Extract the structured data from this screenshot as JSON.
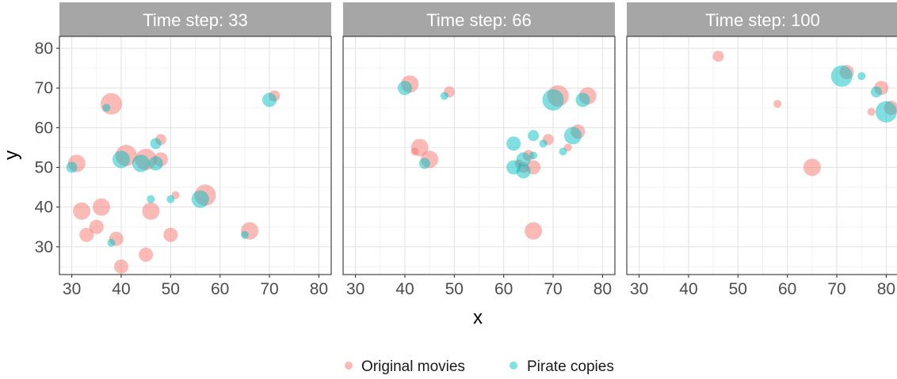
{
  "chart_data": {
    "type": "scatter",
    "xlabel": "x",
    "ylabel": "y",
    "xlim": [
      27.5,
      82.5
    ],
    "ylim": [
      23,
      83
    ],
    "x_ticks": [
      30,
      40,
      50,
      60,
      70,
      80
    ],
    "y_ticks": [
      30,
      40,
      50,
      60,
      70,
      80
    ],
    "grid": true,
    "legend_position": "bottom",
    "colors": {
      "Original movies": "#F8766D",
      "Pirate copies": "#00BFC4"
    },
    "legend": [
      "Original movies",
      "Pirate copies"
    ],
    "panels": [
      {
        "title": "Time step: 33",
        "series": [
          {
            "name": "Original movies",
            "points": [
              {
                "x": 31,
                "y": 51,
                "size": 4
              },
              {
                "x": 32,
                "y": 39,
                "size": 4
              },
              {
                "x": 33,
                "y": 33,
                "size": 3
              },
              {
                "x": 35,
                "y": 35,
                "size": 3
              },
              {
                "x": 36,
                "y": 40,
                "size": 4
              },
              {
                "x": 38,
                "y": 66,
                "size": 5
              },
              {
                "x": 39,
                "y": 32,
                "size": 3
              },
              {
                "x": 40,
                "y": 25,
                "size": 3
              },
              {
                "x": 41,
                "y": 53,
                "size": 5
              },
              {
                "x": 45,
                "y": 28,
                "size": 3
              },
              {
                "x": 45,
                "y": 52,
                "size": 5
              },
              {
                "x": 46,
                "y": 39,
                "size": 4
              },
              {
                "x": 48,
                "y": 52,
                "size": 3
              },
              {
                "x": 48,
                "y": 57,
                "size": 2
              },
              {
                "x": 50,
                "y": 33,
                "size": 3
              },
              {
                "x": 51,
                "y": 43,
                "size": 1
              },
              {
                "x": 57,
                "y": 43,
                "size": 5
              },
              {
                "x": 66,
                "y": 34,
                "size": 4
              },
              {
                "x": 71,
                "y": 68,
                "size": 2
              }
            ]
          },
          {
            "name": "Pirate copies",
            "points": [
              {
                "x": 30,
                "y": 50,
                "size": 2
              },
              {
                "x": 37,
                "y": 65,
                "size": 1
              },
              {
                "x": 38,
                "y": 31,
                "size": 1
              },
              {
                "x": 40,
                "y": 52,
                "size": 4
              },
              {
                "x": 44,
                "y": 51,
                "size": 4
              },
              {
                "x": 46,
                "y": 42,
                "size": 1
              },
              {
                "x": 47,
                "y": 51,
                "size": 3
              },
              {
                "x": 47,
                "y": 56,
                "size": 2
              },
              {
                "x": 50,
                "y": 42,
                "size": 1
              },
              {
                "x": 56,
                "y": 42,
                "size": 4
              },
              {
                "x": 65,
                "y": 33,
                "size": 1
              },
              {
                "x": 70,
                "y": 67,
                "size": 3
              }
            ]
          }
        ]
      },
      {
        "title": "Time step: 66",
        "series": [
          {
            "name": "Original movies",
            "points": [
              {
                "x": 41,
                "y": 71,
                "size": 4
              },
              {
                "x": 42,
                "y": 54,
                "size": 1
              },
              {
                "x": 43,
                "y": 55,
                "size": 4
              },
              {
                "x": 45,
                "y": 52,
                "size": 4
              },
              {
                "x": 49,
                "y": 69,
                "size": 2
              },
              {
                "x": 63,
                "y": 51,
                "size": 1
              },
              {
                "x": 64,
                "y": 50,
                "size": 2
              },
              {
                "x": 65,
                "y": 53,
                "size": 2
              },
              {
                "x": 66,
                "y": 50,
                "size": 3
              },
              {
                "x": 66,
                "y": 34,
                "size": 4
              },
              {
                "x": 69,
                "y": 57,
                "size": 2
              },
              {
                "x": 71,
                "y": 68,
                "size": 5
              },
              {
                "x": 73,
                "y": 55,
                "size": 1
              },
              {
                "x": 75,
                "y": 59,
                "size": 3
              },
              {
                "x": 77,
                "y": 68,
                "size": 4
              }
            ]
          },
          {
            "name": "Pirate copies",
            "points": [
              {
                "x": 40,
                "y": 70,
                "size": 3
              },
              {
                "x": 44,
                "y": 51,
                "size": 2
              },
              {
                "x": 48,
                "y": 68,
                "size": 1
              },
              {
                "x": 62,
                "y": 56,
                "size": 3
              },
              {
                "x": 62,
                "y": 50,
                "size": 3
              },
              {
                "x": 64,
                "y": 52,
                "size": 3
              },
              {
                "x": 64,
                "y": 49,
                "size": 3
              },
              {
                "x": 66,
                "y": 58,
                "size": 2
              },
              {
                "x": 66,
                "y": 53,
                "size": 1
              },
              {
                "x": 68,
                "y": 56,
                "size": 1
              },
              {
                "x": 70,
                "y": 67,
                "size": 5
              },
              {
                "x": 72,
                "y": 54,
                "size": 1
              },
              {
                "x": 74,
                "y": 58,
                "size": 4
              },
              {
                "x": 76,
                "y": 67,
                "size": 3
              }
            ]
          }
        ]
      },
      {
        "title": "Time step: 100",
        "series": [
          {
            "name": "Original movies",
            "points": [
              {
                "x": 46,
                "y": 78,
                "size": 2
              },
              {
                "x": 58,
                "y": 66,
                "size": 1
              },
              {
                "x": 65,
                "y": 50,
                "size": 4
              },
              {
                "x": 72,
                "y": 74,
                "size": 3
              },
              {
                "x": 77,
                "y": 64,
                "size": 1
              },
              {
                "x": 79,
                "y": 70,
                "size": 3
              },
              {
                "x": 81,
                "y": 65,
                "size": 3
              }
            ]
          },
          {
            "name": "Pirate copies",
            "points": [
              {
                "x": 71,
                "y": 73,
                "size": 5
              },
              {
                "x": 75,
                "y": 73,
                "size": 1
              },
              {
                "x": 78,
                "y": 69,
                "size": 2
              },
              {
                "x": 80,
                "y": 64,
                "size": 5
              }
            ]
          }
        ]
      }
    ]
  }
}
